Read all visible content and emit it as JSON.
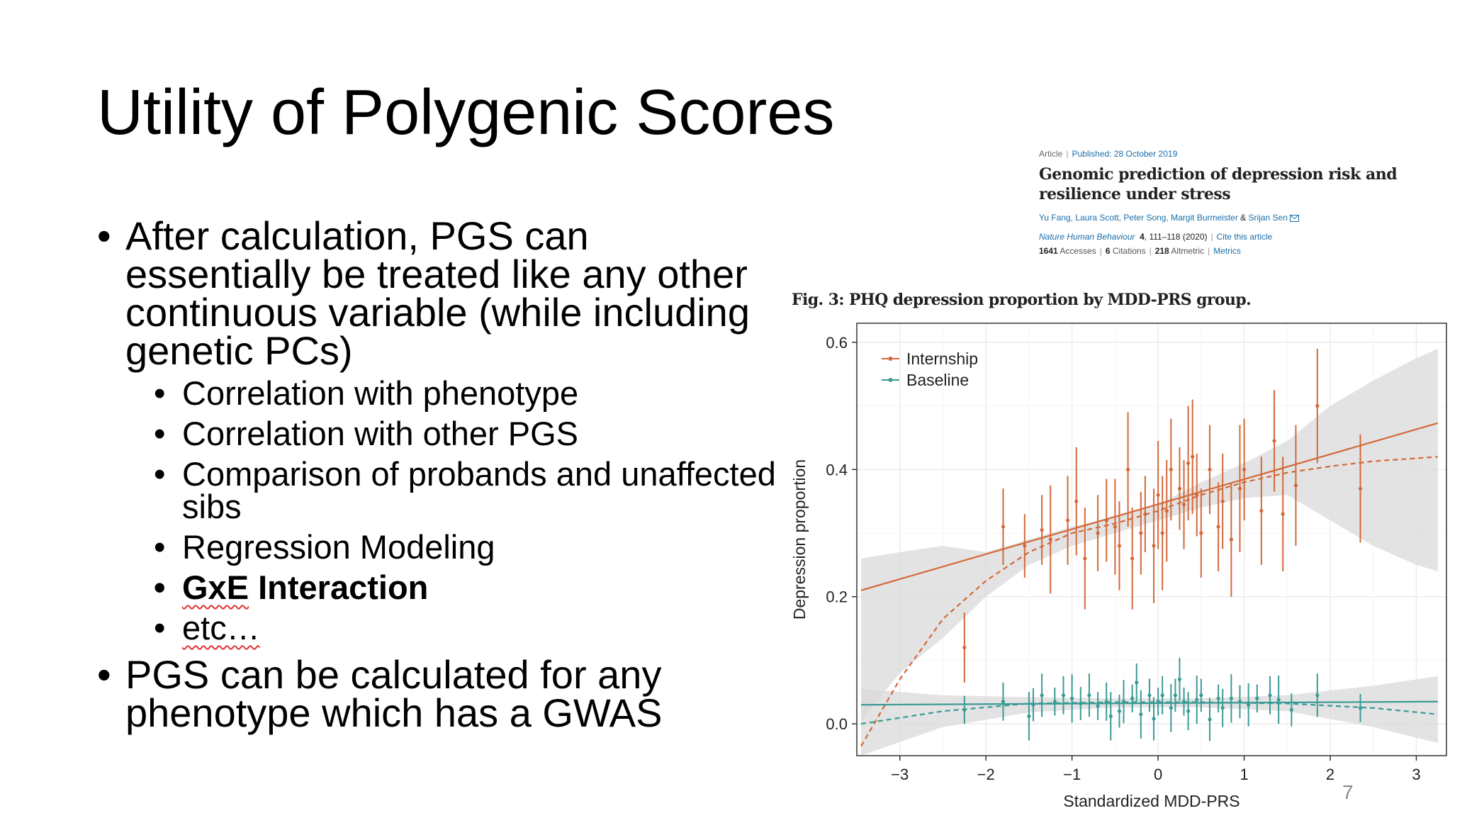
{
  "slide": {
    "title": "Utility of Polygenic Scores",
    "page_number": "7"
  },
  "bullets": {
    "b1": "After calculation, PGS can essentially be treated like any other continuous variable (while including genetic PCs)",
    "sub": [
      "Correlation with phenotype",
      "Correlation with other PGS",
      "Comparison of probands and unaffected sibs",
      "Regression Modeling"
    ],
    "gxe_bold": "GxE",
    "gxe_rest": " Interaction",
    "etc": "etc…",
    "b2": "PGS can be calculated for any phenotype which has a GWAS"
  },
  "article": {
    "type": "Article",
    "published": "Published: 28 October 2019",
    "title": "Genomic prediction of depression risk and resilience under stress",
    "authors": [
      "Yu Fang",
      "Laura Scott",
      "Peter Song",
      "Margit Burmeister"
    ],
    "authors_amp": "&",
    "last_author": "Srijan Sen",
    "journal": "Nature Human Behaviour",
    "volume": "4",
    "pages": "111–118 (2020)",
    "cite": "Cite this article",
    "accesses_n": "1641",
    "accesses": "Accesses",
    "citations_n": "6",
    "citations": "Citations",
    "altmetric_n": "218",
    "altmetric": "Altmetric",
    "metrics": "Metrics",
    "mail_icon": "envelope-icon"
  },
  "figure_caption": "Fig. 3: PHQ depression proportion by MDD-PRS group.",
  "chart_data": {
    "type": "scatter",
    "xlabel": "Standardized MDD-PRS",
    "ylabel": "Depression proportion",
    "xlim": [
      -3.5,
      3.35
    ],
    "ylim": [
      -0.05,
      0.63
    ],
    "xticks": [
      -3,
      -2,
      -1,
      0,
      1,
      2,
      3
    ],
    "xtick_labels": [
      "−3",
      "−2",
      "−1",
      "0",
      "1",
      "2",
      "3"
    ],
    "yticks": [
      0.0,
      0.2,
      0.4,
      0.6
    ],
    "ytick_labels": [
      "0.0",
      "0.2",
      "0.4",
      "0.6"
    ],
    "grid": true,
    "legend_position": "top-left",
    "colors": {
      "Internship": "#d4683a",
      "Baseline": "#3a9a95",
      "band": "#d9d9d9"
    },
    "series": [
      {
        "name": "Internship",
        "x": [
          -2.25,
          -1.8,
          -1.55,
          -1.35,
          -1.25,
          -1.05,
          -0.95,
          -0.85,
          -0.7,
          -0.6,
          -0.5,
          -0.45,
          -0.35,
          -0.3,
          -0.2,
          -0.15,
          -0.05,
          0.0,
          0.05,
          0.1,
          0.15,
          0.25,
          0.3,
          0.35,
          0.4,
          0.45,
          0.5,
          0.6,
          0.7,
          0.75,
          0.85,
          0.95,
          1.0,
          1.2,
          1.35,
          1.45,
          1.6,
          1.85,
          2.35
        ],
        "y": [
          0.12,
          0.31,
          0.28,
          0.305,
          0.29,
          0.32,
          0.35,
          0.26,
          0.3,
          0.32,
          0.31,
          0.28,
          0.4,
          0.26,
          0.3,
          0.33,
          0.28,
          0.36,
          0.3,
          0.335,
          0.4,
          0.37,
          0.345,
          0.41,
          0.42,
          0.36,
          0.3,
          0.4,
          0.31,
          0.35,
          0.29,
          0.37,
          0.4,
          0.335,
          0.445,
          0.33,
          0.375,
          0.5,
          0.37
        ],
        "err": [
          0.055,
          0.06,
          0.05,
          0.055,
          0.085,
          0.07,
          0.085,
          0.08,
          0.06,
          0.065,
          0.075,
          0.07,
          0.09,
          0.08,
          0.065,
          0.06,
          0.09,
          0.085,
          0.09,
          0.08,
          0.08,
          0.065,
          0.07,
          0.09,
          0.09,
          0.065,
          0.07,
          0.07,
          0.07,
          0.075,
          0.09,
          0.1,
          0.08,
          0.085,
          0.08,
          0.09,
          0.095,
          0.09,
          0.085
        ],
        "linear_fit": [
          [
            -3.45,
            0.21
          ],
          [
            3.25,
            0.473
          ]
        ],
        "smooth_fit": [
          [
            -3.45,
            -0.035
          ],
          [
            -3.0,
            0.07
          ],
          [
            -2.5,
            0.165
          ],
          [
            -2.0,
            0.225
          ],
          [
            -1.5,
            0.27
          ],
          [
            -1.0,
            0.3
          ],
          [
            -0.5,
            0.315
          ],
          [
            0.0,
            0.335
          ],
          [
            0.5,
            0.36
          ],
          [
            1.0,
            0.38
          ],
          [
            1.5,
            0.395
          ],
          [
            2.0,
            0.405
          ],
          [
            2.5,
            0.413
          ],
          [
            3.25,
            0.42
          ]
        ],
        "band": [
          [
            -3.45,
            0.005,
            0.26
          ],
          [
            -3.0,
            0.08,
            0.27
          ],
          [
            -2.5,
            0.135,
            0.28
          ],
          [
            -2.0,
            0.2,
            0.27
          ],
          [
            -1.5,
            0.25,
            0.29
          ],
          [
            -1.0,
            0.28,
            0.31
          ],
          [
            -0.5,
            0.3,
            0.325
          ],
          [
            0.0,
            0.32,
            0.345
          ],
          [
            0.5,
            0.34,
            0.38
          ],
          [
            1.0,
            0.355,
            0.41
          ],
          [
            1.5,
            0.36,
            0.445
          ],
          [
            2.0,
            0.32,
            0.5
          ],
          [
            2.5,
            0.28,
            0.54
          ],
          [
            3.0,
            0.25,
            0.575
          ],
          [
            3.25,
            0.24,
            0.59
          ]
        ]
      },
      {
        "name": "Baseline",
        "x": [
          -2.25,
          -1.8,
          -1.5,
          -1.45,
          -1.35,
          -1.2,
          -1.1,
          -1.0,
          -0.9,
          -0.8,
          -0.7,
          -0.6,
          -0.55,
          -0.45,
          -0.4,
          -0.3,
          -0.25,
          -0.2,
          -0.1,
          -0.05,
          0.0,
          0.05,
          0.15,
          0.2,
          0.25,
          0.3,
          0.35,
          0.45,
          0.5,
          0.6,
          0.7,
          0.75,
          0.85,
          0.95,
          1.05,
          1.15,
          1.3,
          1.4,
          1.55,
          1.85,
          2.35
        ],
        "y": [
          0.022,
          0.035,
          0.012,
          0.03,
          0.045,
          0.035,
          0.045,
          0.04,
          0.032,
          0.045,
          0.028,
          0.035,
          0.012,
          0.02,
          0.035,
          0.04,
          0.065,
          0.015,
          0.045,
          0.008,
          0.035,
          0.045,
          0.025,
          0.045,
          0.07,
          0.035,
          0.02,
          0.038,
          0.045,
          0.007,
          0.04,
          0.025,
          0.04,
          0.035,
          0.03,
          0.04,
          0.045,
          0.038,
          0.022,
          0.045,
          0.025
        ]
      }
    ],
    "baseline_linear_fit": [
      [
        -3.45,
        0.03
      ],
      [
        3.25,
        0.035
      ]
    ],
    "baseline_smooth_fit": [
      [
        -3.45,
        0.0
      ],
      [
        -2.5,
        0.02
      ],
      [
        -1.5,
        0.032
      ],
      [
        -0.5,
        0.034
      ],
      [
        0.5,
        0.034
      ],
      [
        1.5,
        0.032
      ],
      [
        2.5,
        0.025
      ],
      [
        3.25,
        0.015
      ]
    ],
    "baseline_band": [
      [
        -3.45,
        -0.05,
        0.055
      ],
      [
        -2.5,
        -0.005,
        0.045
      ],
      [
        -1.5,
        0.018,
        0.042
      ],
      [
        -0.5,
        0.026,
        0.04
      ],
      [
        0.5,
        0.026,
        0.04
      ],
      [
        1.5,
        0.02,
        0.045
      ],
      [
        2.5,
        -0.005,
        0.06
      ],
      [
        3.25,
        -0.03,
        0.075
      ]
    ]
  }
}
